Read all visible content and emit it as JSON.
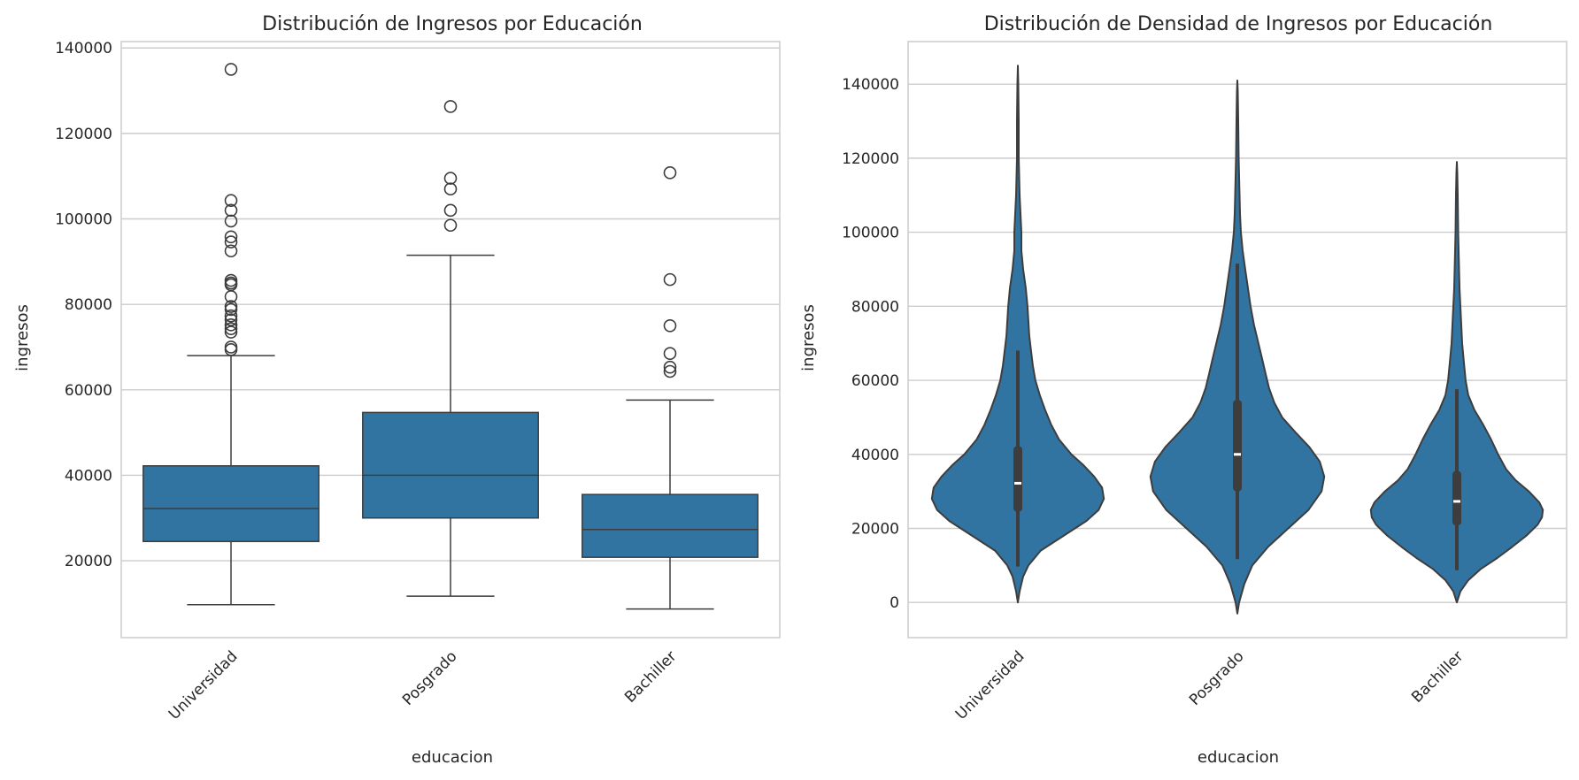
{
  "colors": {
    "fill": "#3274a1",
    "edge": "#3d3d3d",
    "grid": "#cccccc",
    "spine": "#cccccc",
    "text": "#262626"
  },
  "chart_data": [
    {
      "type": "box",
      "title": "Distribución de Ingresos por Educación",
      "xlabel": "educacion",
      "ylabel": "ingresos",
      "ylim": [
        2000,
        141500
      ],
      "yticks": [
        20000,
        40000,
        60000,
        80000,
        100000,
        120000,
        140000
      ],
      "yticklabels": [
        "20000",
        "40000",
        "60000",
        "80000",
        "100000",
        "120000",
        "140000"
      ],
      "grid": true,
      "categories": [
        "Universidad",
        "Posgrado",
        "Bachiller"
      ],
      "boxes": [
        {
          "whislo": 9700,
          "q1": 24500,
          "med": 32200,
          "q3": 42200,
          "whishi": 68000,
          "fliers": [
            135000,
            104300,
            102000,
            99500,
            95800,
            94600,
            92500,
            85600,
            85000,
            84600,
            81800,
            79500,
            78800,
            77300,
            76400,
            75200,
            74300,
            73500,
            70000,
            69400
          ]
        },
        {
          "whislo": 11700,
          "q1": 30000,
          "med": 40000,
          "q3": 54700,
          "whishi": 91500,
          "fliers": [
            126300,
            109500,
            107000,
            102000,
            98500
          ]
        },
        {
          "whislo": 8700,
          "q1": 20800,
          "med": 27300,
          "q3": 35500,
          "whishi": 57600,
          "fliers": [
            110800,
            85800,
            75000,
            68500,
            65300,
            64300
          ]
        }
      ]
    },
    {
      "type": "violin",
      "title": "Distribución de Densidad de Ingresos por Educación",
      "xlabel": "educacion",
      "ylabel": "ingresos",
      "ylim": [
        -9500,
        151500
      ],
      "yticks": [
        0,
        20000,
        40000,
        60000,
        80000,
        100000,
        120000,
        140000
      ],
      "yticklabels": [
        "0",
        "20000",
        "40000",
        "60000",
        "80000",
        "100000",
        "120000",
        "140000"
      ],
      "grid": true,
      "categories": [
        "Universidad",
        "Posgrado",
        "Bachiller"
      ],
      "violins": [
        {
          "ymin": 0,
          "ymax": 145000,
          "q1": 24500,
          "med": 32200,
          "q3": 42200,
          "whislo": 9700,
          "whishi": 68000,
          "profile": [
            [
              0,
              0.0
            ],
            [
              3000,
              0.02
            ],
            [
              7000,
              0.06
            ],
            [
              10000,
              0.12
            ],
            [
              14000,
              0.26
            ],
            [
              18000,
              0.52
            ],
            [
              22000,
              0.78
            ],
            [
              25000,
              0.92
            ],
            [
              28000,
              0.98
            ],
            [
              31000,
              0.96
            ],
            [
              34000,
              0.87
            ],
            [
              37000,
              0.75
            ],
            [
              40000,
              0.61
            ],
            [
              44000,
              0.47
            ],
            [
              48000,
              0.38
            ],
            [
              52000,
              0.31
            ],
            [
              56000,
              0.25
            ],
            [
              60000,
              0.2
            ],
            [
              64000,
              0.17
            ],
            [
              68000,
              0.15
            ],
            [
              72000,
              0.13
            ],
            [
              76000,
              0.12
            ],
            [
              80000,
              0.11
            ],
            [
              85000,
              0.09
            ],
            [
              90000,
              0.06
            ],
            [
              95000,
              0.04
            ],
            [
              100000,
              0.04
            ],
            [
              105000,
              0.03
            ],
            [
              110000,
              0.02
            ],
            [
              115000,
              0.015
            ],
            [
              120000,
              0.01
            ],
            [
              130000,
              0.01
            ],
            [
              140000,
              0.005
            ],
            [
              145000,
              0.0
            ]
          ]
        },
        {
          "ymin": -3000,
          "ymax": 141000,
          "q1": 30000,
          "med": 40000,
          "q3": 54700,
          "whislo": 11700,
          "whishi": 91500,
          "profile": [
            [
              -3000,
              0.0
            ],
            [
              0,
              0.02
            ],
            [
              5000,
              0.08
            ],
            [
              10000,
              0.17
            ],
            [
              15000,
              0.35
            ],
            [
              20000,
              0.58
            ],
            [
              25000,
              0.81
            ],
            [
              30000,
              0.96
            ],
            [
              34000,
              0.99
            ],
            [
              38000,
              0.94
            ],
            [
              42000,
              0.82
            ],
            [
              46000,
              0.66
            ],
            [
              50000,
              0.51
            ],
            [
              54000,
              0.42
            ],
            [
              58000,
              0.36
            ],
            [
              62000,
              0.32
            ],
            [
              66000,
              0.28
            ],
            [
              70000,
              0.24
            ],
            [
              75000,
              0.19
            ],
            [
              80000,
              0.15
            ],
            [
              85000,
              0.12
            ],
            [
              90000,
              0.09
            ],
            [
              95000,
              0.06
            ],
            [
              100000,
              0.04
            ],
            [
              105000,
              0.03
            ],
            [
              110000,
              0.025
            ],
            [
              115000,
              0.02
            ],
            [
              120000,
              0.015
            ],
            [
              130000,
              0.01
            ],
            [
              138000,
              0.005
            ],
            [
              141000,
              0.0
            ]
          ]
        },
        {
          "ymin": 0,
          "ymax": 119000,
          "q1": 20800,
          "med": 27300,
          "q3": 35500,
          "whislo": 8700,
          "whishi": 57600,
          "profile": [
            [
              0,
              0.0
            ],
            [
              3000,
              0.04
            ],
            [
              6000,
              0.13
            ],
            [
              9000,
              0.27
            ],
            [
              12000,
              0.46
            ],
            [
              15000,
              0.63
            ],
            [
              18000,
              0.79
            ],
            [
              21000,
              0.92
            ],
            [
              23000,
              0.97
            ],
            [
              25000,
              0.98
            ],
            [
              27000,
              0.94
            ],
            [
              30000,
              0.82
            ],
            [
              33000,
              0.67
            ],
            [
              36000,
              0.56
            ],
            [
              40000,
              0.47
            ],
            [
              44000,
              0.39
            ],
            [
              48000,
              0.3
            ],
            [
              52000,
              0.2
            ],
            [
              56000,
              0.13
            ],
            [
              60000,
              0.1
            ],
            [
              65000,
              0.08
            ],
            [
              70000,
              0.06
            ],
            [
              75000,
              0.05
            ],
            [
              80000,
              0.04
            ],
            [
              85000,
              0.03
            ],
            [
              90000,
              0.025
            ],
            [
              95000,
              0.02
            ],
            [
              100000,
              0.015
            ],
            [
              110000,
              0.01
            ],
            [
              116000,
              0.005
            ],
            [
              119000,
              0.0
            ]
          ]
        }
      ]
    }
  ]
}
